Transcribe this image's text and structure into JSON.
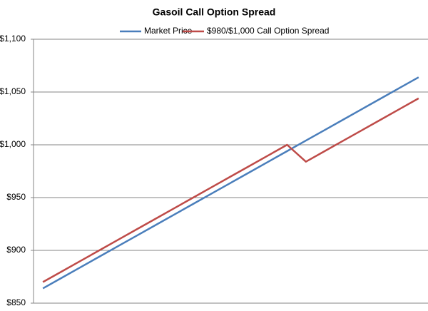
{
  "chart_data": {
    "type": "line",
    "title": "Gasoil Call Option Spread",
    "categories": [
      null,
      null,
      null,
      null,
      null,
      null,
      null,
      null,
      null,
      null,
      null,
      null,
      null,
      null,
      null,
      null,
      null,
      null,
      null,
      null,
      null
    ],
    "series": [
      {
        "name": "Market Price",
        "color": "#4a7ebb",
        "values": [
          864,
          874,
          884,
          894,
          904,
          914,
          924,
          934,
          944,
          954,
          964,
          974,
          984,
          994,
          1004,
          1014,
          1024,
          1034,
          1044,
          1054,
          1064
        ]
      },
      {
        "name": "$980/$1,000 Call Option Spread",
        "color": "#be4b48",
        "values": [
          870,
          880,
          890,
          900,
          910,
          920,
          930,
          940,
          950,
          960,
          970,
          980,
          990,
          1000,
          984,
          994,
          1004,
          1014,
          1024,
          1034,
          1044
        ]
      }
    ],
    "ylim": [
      850,
      1100
    ],
    "yticks": [
      {
        "value": 850,
        "label": "$850"
      },
      {
        "value": 900,
        "label": "$900"
      },
      {
        "value": 950,
        "label": "$950"
      },
      {
        "value": 1000,
        "label": "$1,000"
      },
      {
        "value": 1050,
        "label": "$1,050"
      },
      {
        "value": 1100,
        "label": "$1,100"
      }
    ],
    "grid": true,
    "legend": "top"
  }
}
